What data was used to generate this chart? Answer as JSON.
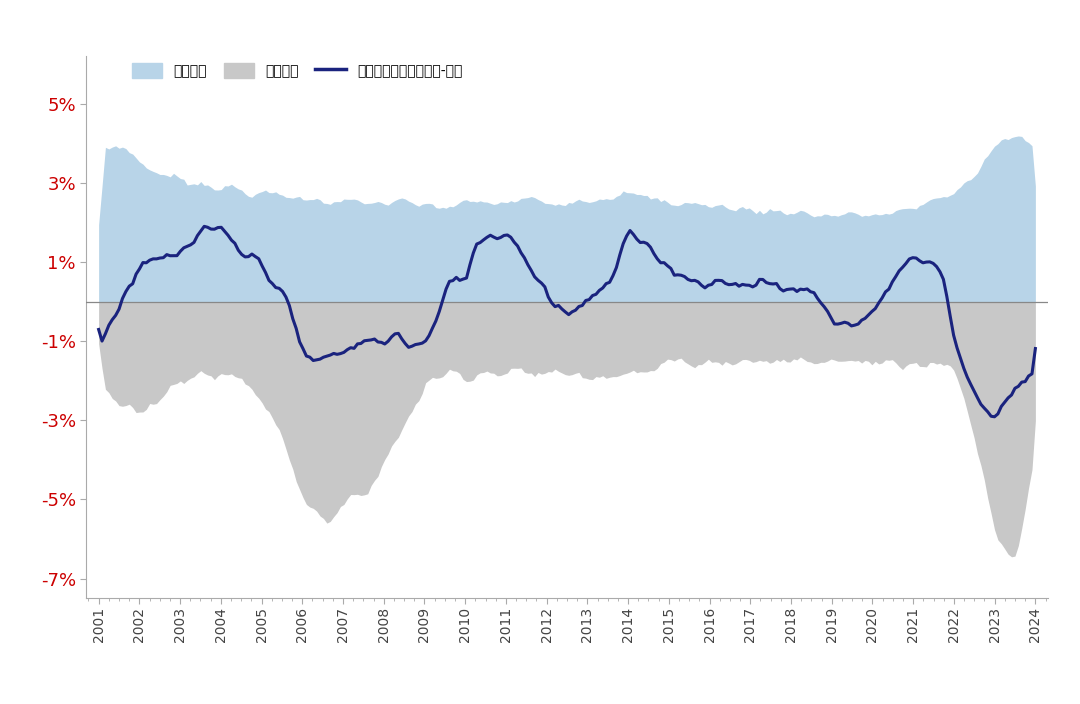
{
  "title": "",
  "years_start": 2001,
  "years_end": 2024,
  "yticks": [
    -7,
    -5,
    -3,
    -1,
    1,
    3,
    5
  ],
  "ytick_labels": [
    "-7%",
    "-5%",
    "-3%",
    "-1%",
    "1%",
    "3%",
    "5%"
  ],
  "ylim": [
    -7.5,
    6.2
  ],
  "legend_labels": [
    "利差贡献",
    "对冲成本",
    "汇率对冲后利差：美国-日本"
  ],
  "fill_upper_color": "#b8d4e8",
  "fill_lower_color": "#c8c8c8",
  "line_color": "#1a237e",
  "background_color": "#ffffff",
  "tick_color": "#cc0000",
  "zero_line_color": "#888888",
  "xtick_years": [
    2001,
    2002,
    2003,
    2004,
    2005,
    2006,
    2007,
    2008,
    2009,
    2010,
    2011,
    2012,
    2013,
    2014,
    2015,
    2016,
    2017,
    2018,
    2019,
    2020,
    2021,
    2022,
    2023,
    2024
  ],
  "upper_t": [
    2001.0,
    2001.5,
    2002.0,
    2002.5,
    2003.0,
    2003.5,
    2004.0,
    2004.5,
    2005.0,
    2005.5,
    2006.0,
    2006.5,
    2007.0,
    2007.5,
    2008.0,
    2008.5,
    2009.0,
    2009.5,
    2010.0,
    2010.5,
    2011.0,
    2011.5,
    2012.0,
    2012.5,
    2013.0,
    2013.5,
    2014.0,
    2014.5,
    2015.0,
    2015.5,
    2016.0,
    2016.5,
    2017.0,
    2017.5,
    2018.0,
    2018.5,
    2019.0,
    2019.5,
    2020.0,
    2020.5,
    2021.0,
    2021.5,
    2022.0,
    2022.5,
    2023.0,
    2023.5,
    2024.0
  ],
  "upper_v": [
    3.8,
    4.0,
    3.5,
    3.2,
    3.1,
    3.0,
    2.9,
    2.8,
    2.7,
    2.7,
    2.6,
    2.6,
    2.5,
    2.5,
    2.5,
    2.5,
    2.4,
    2.4,
    2.5,
    2.5,
    2.5,
    2.6,
    2.5,
    2.6,
    2.6,
    2.7,
    2.7,
    2.6,
    2.5,
    2.5,
    2.4,
    2.4,
    2.3,
    2.3,
    2.3,
    2.2,
    2.2,
    2.2,
    2.2,
    2.2,
    2.4,
    2.6,
    2.8,
    3.2,
    4.0,
    4.2,
    3.8
  ],
  "lower_t": [
    2001.0,
    2001.5,
    2002.0,
    2002.5,
    2003.0,
    2003.5,
    2004.0,
    2004.5,
    2005.0,
    2005.5,
    2006.0,
    2006.5,
    2007.0,
    2007.5,
    2008.0,
    2008.5,
    2009.0,
    2009.5,
    2010.0,
    2010.5,
    2011.0,
    2011.5,
    2012.0,
    2012.5,
    2013.0,
    2013.5,
    2014.0,
    2014.5,
    2015.0,
    2015.5,
    2016.0,
    2016.5,
    2017.0,
    2017.5,
    2018.0,
    2018.5,
    2019.0,
    2019.5,
    2020.0,
    2020.5,
    2021.0,
    2021.5,
    2022.0,
    2022.5,
    2023.0,
    2023.5,
    2024.0
  ],
  "lower_v": [
    -2.0,
    -2.5,
    -2.8,
    -2.5,
    -2.0,
    -1.8,
    -1.8,
    -2.0,
    -2.5,
    -3.5,
    -5.0,
    -5.5,
    -5.2,
    -4.8,
    -4.0,
    -3.0,
    -2.0,
    -1.8,
    -1.8,
    -1.8,
    -1.8,
    -1.8,
    -1.8,
    -1.8,
    -1.8,
    -1.8,
    -1.8,
    -1.8,
    -1.5,
    -1.5,
    -1.5,
    -1.5,
    -1.5,
    -1.5,
    -1.5,
    -1.5,
    -1.5,
    -1.5,
    -1.5,
    -1.5,
    -1.5,
    -1.5,
    -1.8,
    -3.5,
    -6.0,
    -6.5,
    -3.5
  ],
  "line_t": [
    2001.0,
    2001.3,
    2001.7,
    2002.0,
    2002.3,
    2002.6,
    2003.0,
    2003.3,
    2003.6,
    2004.0,
    2004.3,
    2004.5,
    2004.8,
    2005.0,
    2005.3,
    2005.6,
    2006.0,
    2006.3,
    2006.6,
    2007.0,
    2007.3,
    2007.6,
    2008.0,
    2008.3,
    2008.6,
    2009.0,
    2009.3,
    2009.6,
    2010.0,
    2010.3,
    2010.6,
    2011.0,
    2011.3,
    2011.6,
    2012.0,
    2012.3,
    2012.6,
    2013.0,
    2013.3,
    2013.6,
    2014.0,
    2014.3,
    2014.6,
    2015.0,
    2015.3,
    2015.6,
    2016.0,
    2016.3,
    2016.6,
    2017.0,
    2017.3,
    2017.6,
    2018.0,
    2018.3,
    2018.6,
    2019.0,
    2019.3,
    2019.6,
    2020.0,
    2020.3,
    2020.6,
    2021.0,
    2021.3,
    2021.5,
    2021.8,
    2022.0,
    2022.3,
    2022.6,
    2023.0,
    2023.3,
    2023.6,
    2024.0
  ],
  "line_v": [
    -1.1,
    -0.5,
    0.3,
    0.8,
    1.0,
    1.1,
    1.2,
    1.5,
    1.8,
    1.8,
    1.5,
    1.2,
    1.1,
    1.0,
    0.5,
    0.1,
    -1.3,
    -1.5,
    -1.4,
    -1.3,
    -1.1,
    -1.0,
    -1.0,
    -0.8,
    -1.1,
    -1.1,
    -0.5,
    0.5,
    0.6,
    1.5,
    1.7,
    1.7,
    1.5,
    0.8,
    0.3,
    -0.2,
    -0.3,
    0.1,
    0.3,
    0.5,
    1.8,
    1.5,
    1.2,
    0.9,
    0.7,
    0.5,
    0.5,
    0.5,
    0.4,
    0.5,
    0.5,
    0.4,
    0.3,
    0.3,
    0.2,
    -0.5,
    -0.5,
    -0.6,
    -0.3,
    0.2,
    0.8,
    1.1,
    1.0,
    1.0,
    0.5,
    -1.0,
    -1.8,
    -2.5,
    -3.0,
    -2.5,
    -2.0,
    -1.8
  ]
}
